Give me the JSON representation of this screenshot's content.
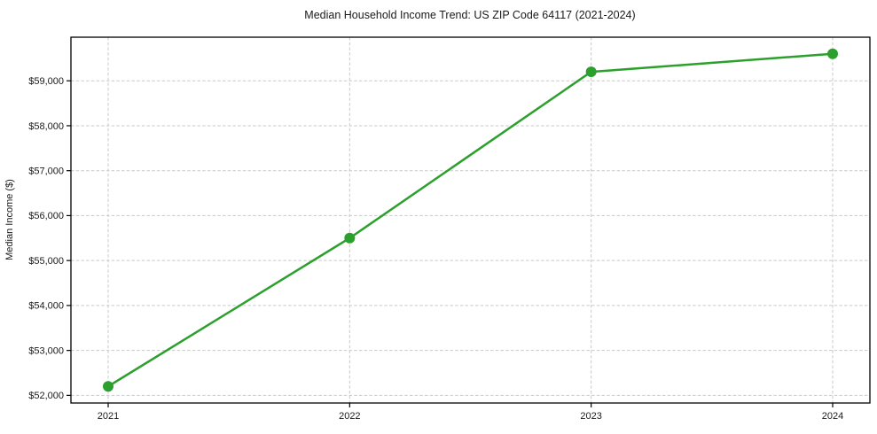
{
  "chart_data": {
    "type": "line",
    "title": "Median Household Income Trend: US ZIP Code 64117 (2021-2024)",
    "xlabel": "",
    "ylabel": "Median Income ($)",
    "categories": [
      "2021",
      "2022",
      "2023",
      "2024"
    ],
    "values": [
      52200,
      55500,
      59200,
      59600
    ],
    "value_labels": [
      "$52,200",
      "$55,500",
      "$59,200",
      "$59,600"
    ],
    "line_color": "#2ca02c",
    "marker": "circle",
    "y_ticks": [
      {
        "value": 52000,
        "label": "$52,000"
      },
      {
        "value": 53000,
        "label": "$53,000"
      },
      {
        "value": 54000,
        "label": "$54,000"
      },
      {
        "value": 55000,
        "label": "$55,000"
      },
      {
        "value": 56000,
        "label": "$56,000"
      },
      {
        "value": 57000,
        "label": "$57,000"
      },
      {
        "value": 58000,
        "label": "$58,000"
      },
      {
        "value": 59000,
        "label": "$59,000"
      }
    ],
    "ylim": [
      51830,
      59970
    ],
    "grid": "dashed, both axes",
    "legend": "none"
  },
  "style": {
    "background": "#ffffff",
    "grid_color": "#c9c9c9",
    "spine_color": "#000000",
    "text_color": "#1a1a1a"
  }
}
